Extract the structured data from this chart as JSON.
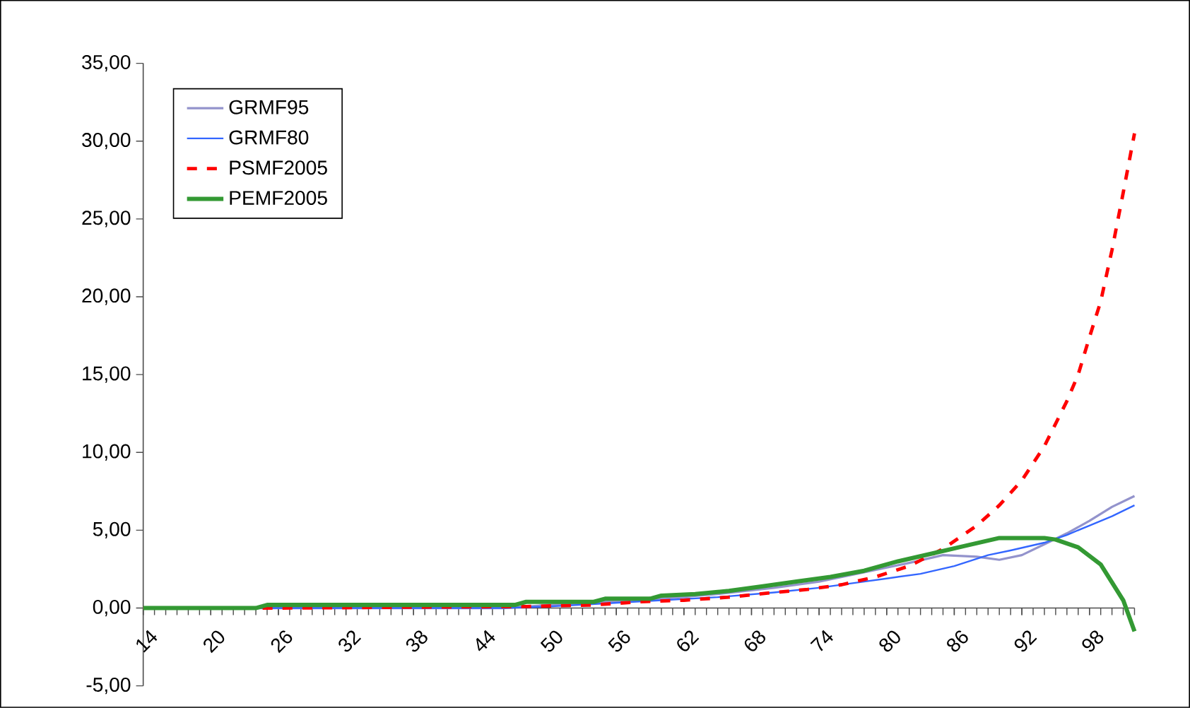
{
  "chart_data": {
    "type": "line",
    "xlim": [
      14,
      102
    ],
    "xticks": [
      14,
      20,
      26,
      32,
      38,
      44,
      50,
      56,
      62,
      68,
      74,
      80,
      86,
      92,
      98
    ],
    "ylim": [
      -5,
      35
    ],
    "yticks": [
      {
        "value": -5,
        "label": "-5,00"
      },
      {
        "value": 0,
        "label": "0,00"
      },
      {
        "value": 5,
        "label": "5,00"
      },
      {
        "value": 10,
        "label": "10,00"
      },
      {
        "value": 15,
        "label": "15,00"
      },
      {
        "value": 20,
        "label": "20,00"
      },
      {
        "value": 25,
        "label": "25,00"
      },
      {
        "value": 30,
        "label": "30,00"
      },
      {
        "value": 35,
        "label": "35,00"
      }
    ],
    "legend": "top left",
    "grid": false,
    "marker": "none",
    "series": [
      {
        "name": "GRMF95",
        "color": "#9393cc",
        "line_style": "solid",
        "x": [
          14,
          46,
          50,
          55,
          60,
          65,
          70,
          74,
          78,
          82,
          85,
          88,
          90,
          92,
          94,
          96,
          98,
          100,
          102
        ],
        "values": [
          0,
          0,
          0.2,
          0.4,
          0.6,
          0.9,
          1.3,
          1.7,
          2.3,
          2.9,
          3.4,
          3.3,
          3.1,
          3.4,
          4.1,
          4.8,
          5.6,
          6.5,
          7.2
        ]
      },
      {
        "name": "GRMF80",
        "color": "#3366ff",
        "line_style": "solid",
        "x": [
          14,
          46,
          50,
          55,
          60,
          65,
          70,
          74,
          78,
          80,
          83,
          86,
          89,
          91,
          94,
          96,
          98,
          100,
          102
        ],
        "values": [
          0,
          0,
          0.1,
          0.3,
          0.5,
          0.7,
          1.0,
          1.3,
          1.7,
          1.9,
          2.2,
          2.7,
          3.4,
          3.7,
          4.2,
          4.7,
          5.3,
          5.9,
          6.6
        ]
      },
      {
        "name": "PSMF2005",
        "color": "#ff0000",
        "line_style": "dashed",
        "x": [
          14,
          26,
          48,
          54,
          58,
          62,
          66,
          70,
          73,
          76,
          79,
          82,
          85,
          88,
          90,
          92,
          94,
          96,
          97,
          98,
          99,
          100,
          101,
          102
        ],
        "values": [
          0,
          0,
          0.1,
          0.2,
          0.4,
          0.5,
          0.7,
          1.0,
          1.2,
          1.5,
          2.0,
          2.7,
          3.8,
          5.3,
          6.6,
          8.2,
          10.4,
          13.3,
          15.0,
          17.4,
          19.7,
          23.0,
          26.7,
          30.5
        ]
      },
      {
        "name": "PEMF2005",
        "color": "#339933",
        "line_style": "solid",
        "x": [
          14,
          24,
          25,
          47,
          48,
          54,
          55,
          59,
          60,
          63,
          66,
          69,
          72,
          75,
          78,
          81,
          84,
          87,
          90,
          94,
          95,
          97,
          99,
          101,
          102
        ],
        "values": [
          0,
          0,
          0.2,
          0.2,
          0.4,
          0.4,
          0.6,
          0.6,
          0.8,
          0.9,
          1.1,
          1.4,
          1.7,
          2.0,
          2.4,
          3.0,
          3.5,
          4.0,
          4.5,
          4.5,
          4.4,
          3.9,
          2.8,
          0.5,
          -1.5
        ]
      }
    ]
  }
}
